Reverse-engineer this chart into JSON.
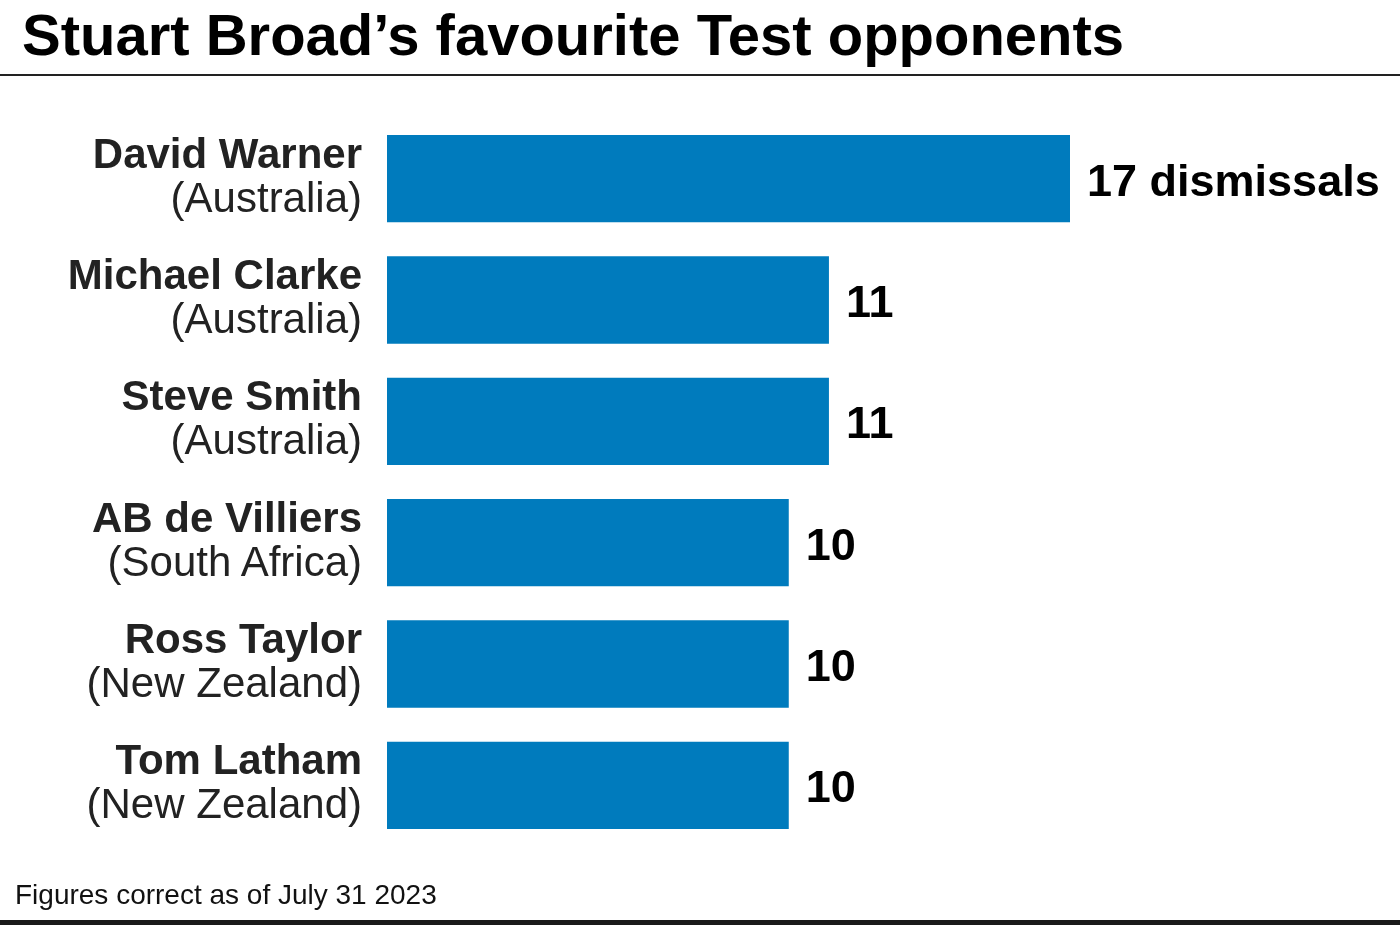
{
  "chart_data": {
    "type": "bar",
    "orientation": "horizontal",
    "title": "Stuart Broad’s favourite Test opponents",
    "categories": [
      "David Warner\n(Australia)",
      "Michael Clarke\n(Australia)",
      "Steve Smith\n(Australia)",
      "AB de Villiers\n(South Africa)",
      "Ross Taylor\n(New Zealand)",
      "Tom Latham\n(New Zealand)"
    ],
    "values": [
      17,
      11,
      11,
      10,
      10,
      10
    ],
    "color": "#007bbd",
    "value_labels": [
      "17 dismissals",
      "11",
      "11",
      "10",
      "10",
      "10"
    ],
    "annotations": [
      "Figures correct as of July 31 2023"
    ]
  }
}
